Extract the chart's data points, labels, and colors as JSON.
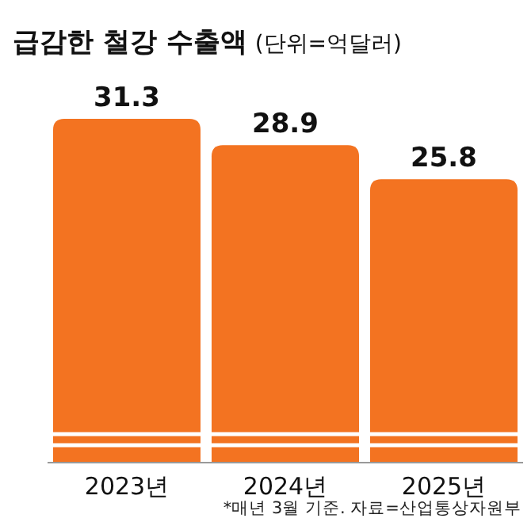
{
  "chart_data": {
    "type": "bar",
    "title": "급감한 철강 수출액",
    "subtitle": "(단위=억달러)",
    "categories": [
      "2023년",
      "2024년",
      "2025년"
    ],
    "values": [
      31.3,
      28.9,
      25.8
    ],
    "color": "#f37321",
    "data_labels": true,
    "annotations": [
      "*매년 3월 기준. 자료=산업통상자원부"
    ]
  }
}
